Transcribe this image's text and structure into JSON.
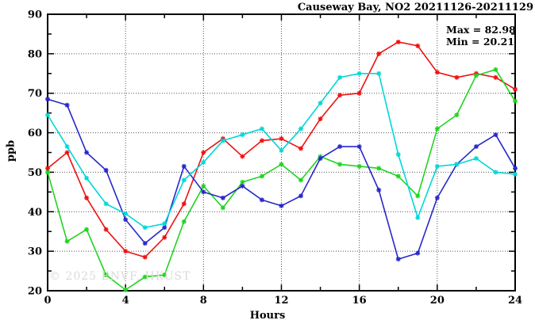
{
  "watermark": "© 2025 ENVF, HKUST",
  "annotation": {
    "max_label": "Max = 82.98",
    "min_label": "Min = 20.21"
  },
  "chart_data": {
    "type": "line",
    "title": "Causeway Bay, NO2 20211126-20211129",
    "xlabel": "Hours",
    "ylabel": "ppb",
    "xlim": [
      0,
      24
    ],
    "ylim": [
      20,
      90
    ],
    "x_major_ticks": [
      0,
      4,
      8,
      12,
      16,
      20,
      24
    ],
    "x_minor_ticks": [
      2,
      6,
      10,
      14,
      18,
      22
    ],
    "y_major_ticks": [
      20,
      30,
      40,
      50,
      60,
      70,
      80,
      90
    ],
    "y_minor_ticks": [
      25,
      35,
      45,
      55,
      65,
      75,
      85
    ],
    "grid": true,
    "legend": "none",
    "max_value": 82.98,
    "min_value": 20.21,
    "x": [
      0,
      1,
      2,
      3,
      4,
      5,
      6,
      7,
      8,
      9,
      10,
      11,
      12,
      13,
      14,
      15,
      16,
      17,
      18,
      19,
      20,
      21,
      22,
      23,
      24
    ],
    "series": [
      {
        "name": "red-line",
        "color": "#ee1111",
        "values": [
          51,
          55,
          43.5,
          35.5,
          30,
          28.5,
          33.5,
          42,
          55,
          58.5,
          54,
          58,
          58.5,
          56,
          63.5,
          69.5,
          70,
          80,
          82.98,
          82,
          75.3,
          74,
          75,
          74,
          71
        ]
      },
      {
        "name": "green-line",
        "color": "#1fd41f",
        "values": [
          50,
          32.5,
          35.5,
          24,
          20.21,
          23.5,
          24,
          37.5,
          46.5,
          41,
          47.5,
          49,
          52,
          48,
          54,
          52,
          51.5,
          51,
          49,
          44,
          61,
          64.5,
          74.5,
          76,
          68
        ]
      },
      {
        "name": "blue-line",
        "color": "#2727cc",
        "values": [
          68.5,
          67,
          55,
          50.5,
          38,
          32,
          36,
          51.5,
          45,
          43.5,
          46.5,
          43,
          41.5,
          44,
          53.5,
          56.5,
          56.5,
          45.5,
          28,
          29.5,
          43.5,
          52,
          56.5,
          59.5,
          51
        ]
      },
      {
        "name": "cyan-line",
        "color": "#00d8d8",
        "values": [
          64.5,
          56.5,
          48.5,
          42,
          39.5,
          36,
          37,
          48,
          52.5,
          58,
          59.5,
          61,
          55.5,
          61,
          67.5,
          74,
          75,
          75,
          54.5,
          38.5,
          51.5,
          52,
          53.5,
          50,
          49.5
        ]
      }
    ]
  }
}
